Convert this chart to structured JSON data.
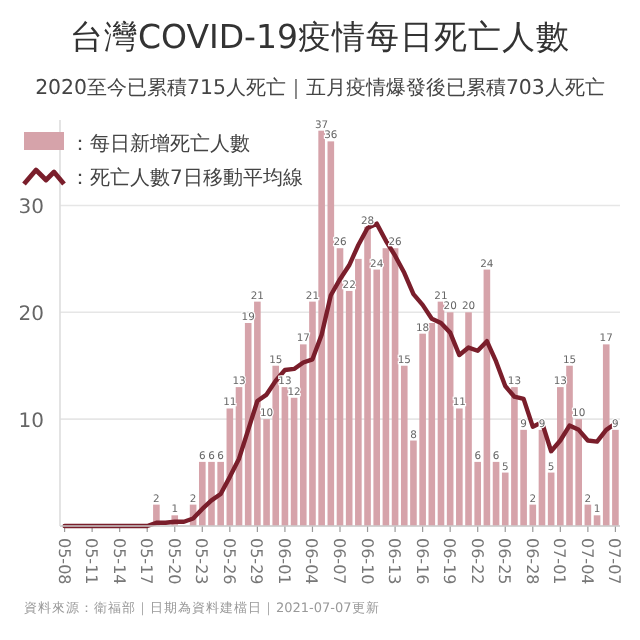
{
  "chart_data": {
    "type": "bar",
    "title": "台灣COVID-19疫情每日死亡人數",
    "subtitle": "2020至今已累積715人死亡｜五月疫情爆發後已累積703人死亡",
    "categories": [
      "05-08",
      null,
      null,
      "05-11",
      null,
      null,
      "05-14",
      null,
      null,
      "05-17",
      null,
      null,
      "05-20",
      null,
      null,
      "05-23",
      null,
      null,
      "05-26",
      null,
      null,
      "05-29",
      null,
      null,
      "06-01",
      null,
      null,
      "06-04",
      null,
      null,
      "06-07",
      null,
      null,
      "06-10",
      null,
      null,
      "06-13",
      null,
      null,
      "06-16",
      null,
      null,
      "06-19",
      null,
      null,
      "06-22",
      null,
      null,
      "06-25",
      null,
      null,
      "06-28",
      null,
      null,
      "07-01",
      null,
      null,
      "07-04",
      null,
      null,
      "07-07"
    ],
    "series": [
      {
        "name": "：每日新增死亡人數",
        "color": "#d6a3aa",
        "values": [
          0,
          0,
          0,
          0,
          0,
          0,
          0,
          0,
          0,
          0,
          2,
          0,
          1,
          0,
          2,
          6,
          6,
          6,
          11,
          13,
          19,
          21,
          10,
          15,
          13,
          12,
          17,
          21,
          37,
          36,
          26,
          22,
          25,
          28,
          24,
          26,
          26,
          15,
          8,
          18,
          19,
          21,
          20,
          11,
          20,
          6,
          24,
          6,
          5,
          13,
          9,
          2,
          9,
          5,
          13,
          15,
          10,
          2,
          1,
          17,
          9
        ],
        "value_labels": [
          null,
          null,
          null,
          null,
          null,
          null,
          null,
          null,
          null,
          null,
          "2",
          null,
          "1",
          null,
          "2",
          "6",
          "6",
          "6",
          "11",
          "13",
          "19",
          "21",
          "10",
          "15",
          "13",
          "12",
          "17",
          "21",
          "37",
          "36",
          "26",
          "22",
          null,
          "28",
          "24",
          null,
          "26",
          "15",
          "8",
          "18",
          null,
          "21",
          "20",
          "11",
          "20",
          "6",
          "24",
          "6",
          "5",
          "13",
          "9",
          "2",
          "9",
          "5",
          "13",
          "15",
          "10",
          "2",
          "1",
          "17",
          "9"
        ]
      },
      {
        "type": "line",
        "name": "：死亡人數7日移動平均線",
        "color": "#7a1e2b",
        "line_style": "solid",
        "marker": "none",
        "values": [
          0,
          0,
          0,
          0,
          0,
          0,
          0,
          0,
          0,
          0,
          0.3,
          0.3,
          0.4,
          0.4,
          0.7,
          1.6,
          2.4,
          3.0,
          4.6,
          6.3,
          9.0,
          11.7,
          12.3,
          13.6,
          14.6,
          14.7,
          15.3,
          15.6,
          17.9,
          21.6,
          23.1,
          24.4,
          26.3,
          27.9,
          28.3,
          26.7,
          25.3,
          23.7,
          21.7,
          20.7,
          19.4,
          19.0,
          18.1,
          16.0,
          16.7,
          16.4,
          17.3,
          15.4,
          13.1,
          12.1,
          11.9,
          9.3,
          9.7,
          7.0,
          8.0,
          9.4,
          9.0,
          8.0,
          7.9,
          9.0,
          9.6
        ]
      }
    ],
    "ylim": [
      0,
      38
    ],
    "yticks": [
      {
        "value": 0,
        "label": null
      },
      10,
      20,
      30
    ],
    "grid": "y",
    "legend": "top left",
    "annotations": [
      "資料來源：衛福部｜日期為資料建檔日｜2021-07-07更新"
    ]
  }
}
